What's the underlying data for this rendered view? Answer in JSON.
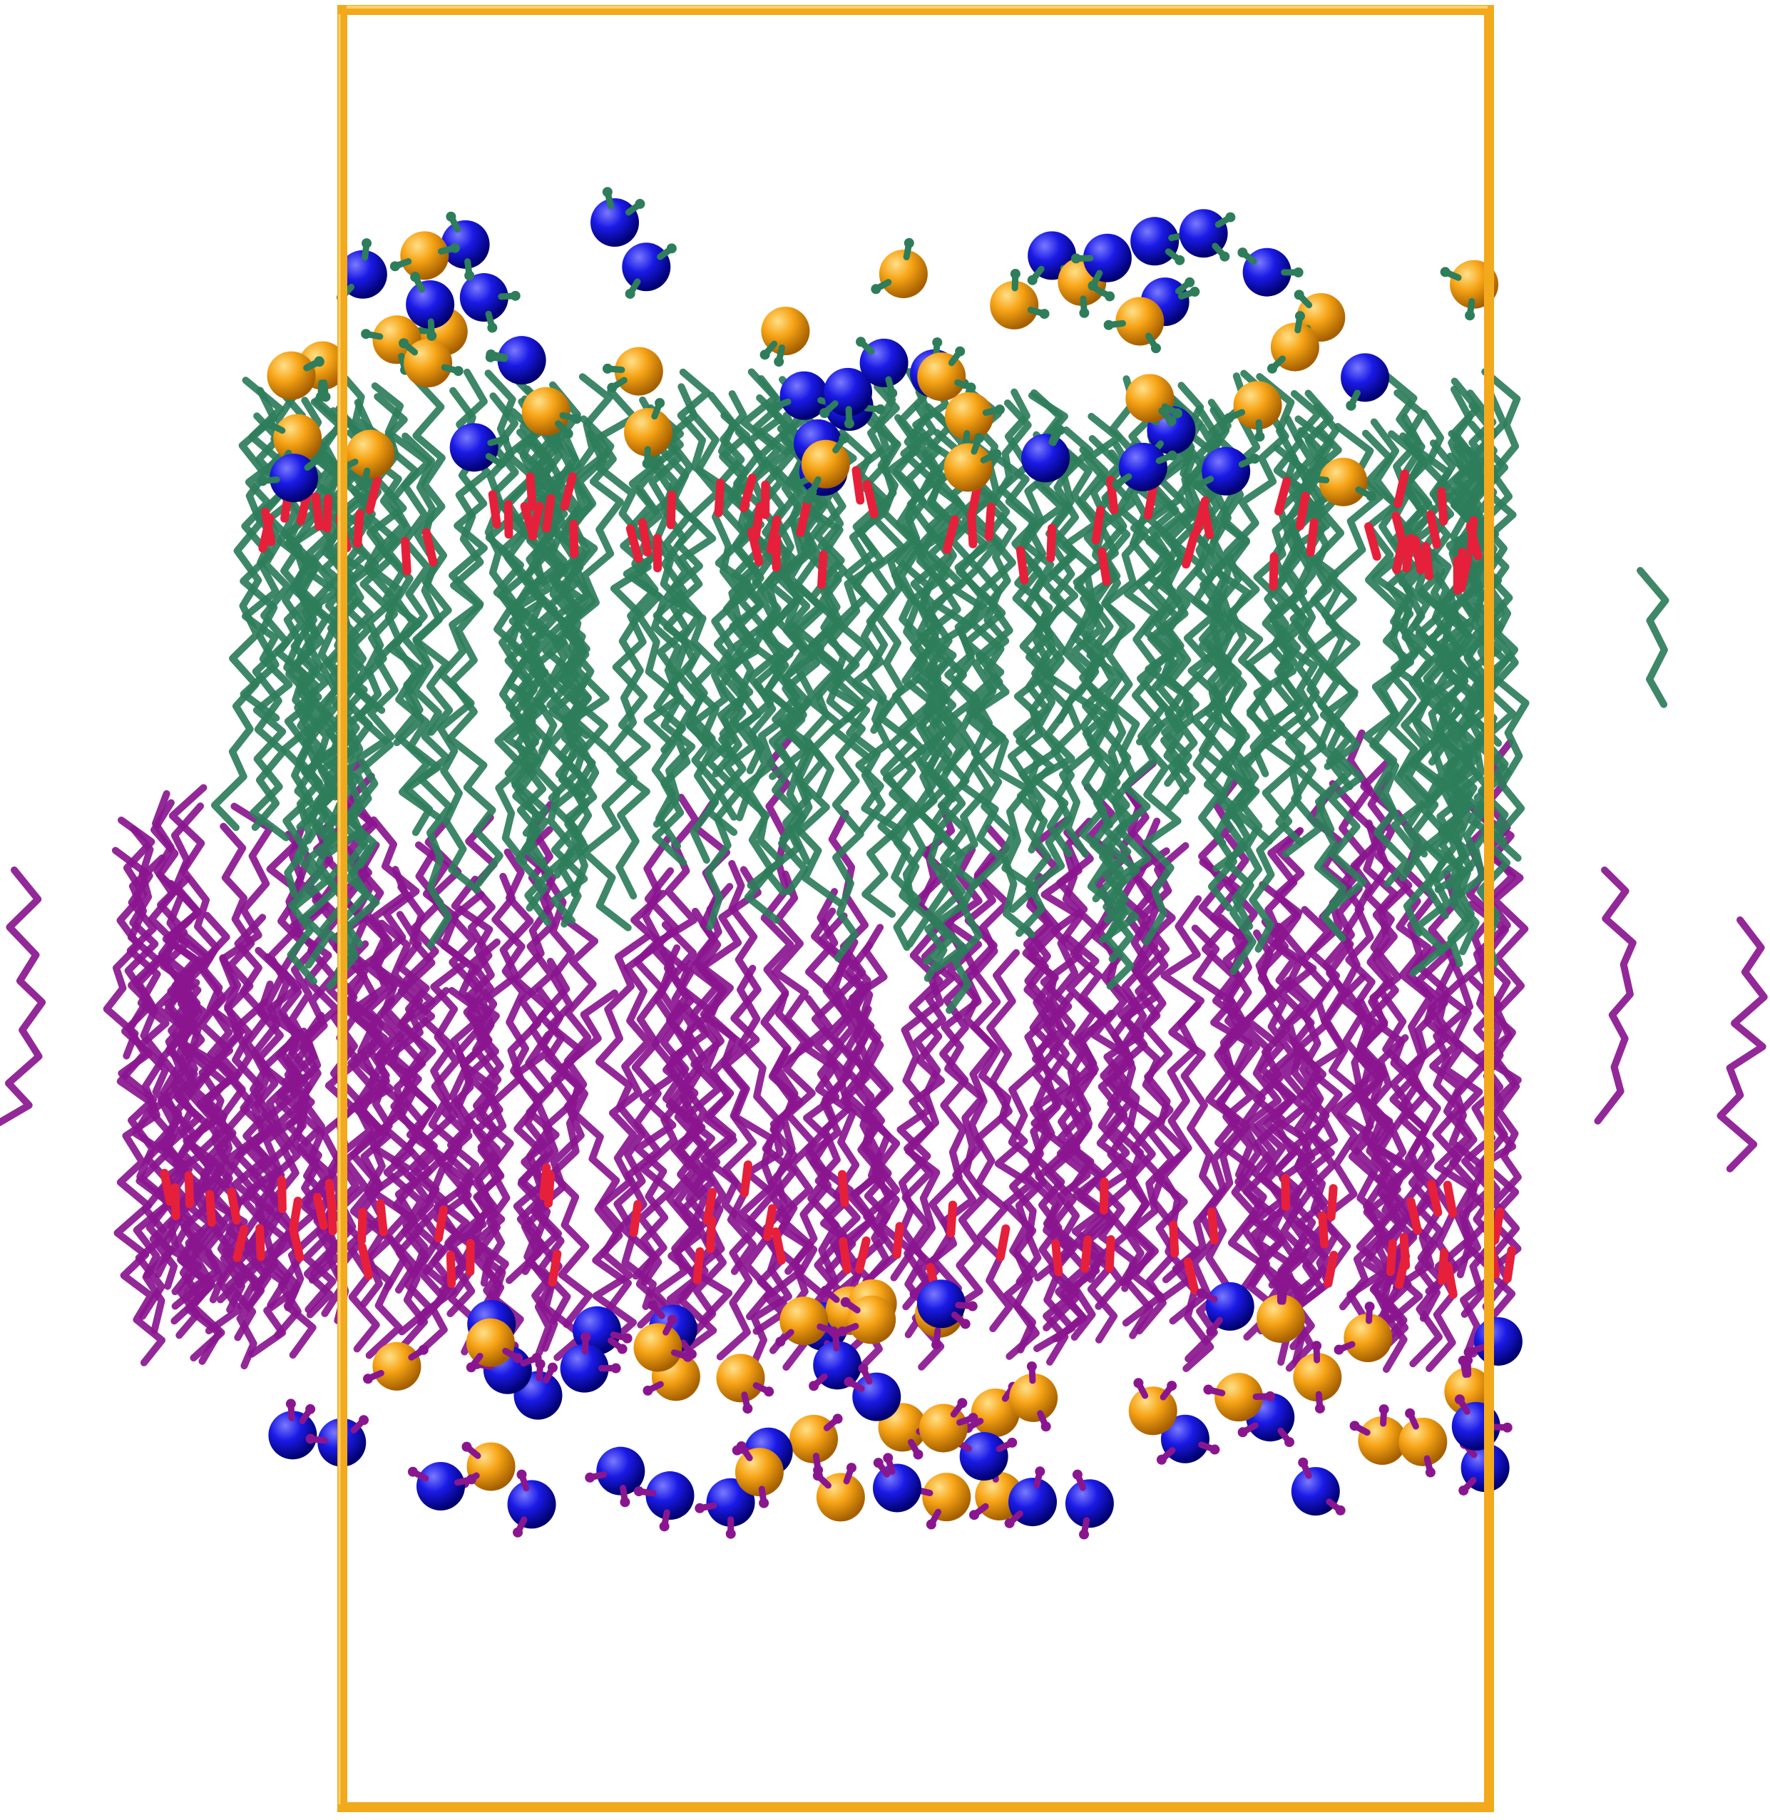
{
  "scene": {
    "subject": "lipid-bilayer-molecular-render",
    "colors": {
      "background": "#ffffff",
      "box": "#f2a91c",
      "box_shadow": "#b5780a",
      "upper_leaflet": "#2e7d5b",
      "lower_leaflet": "#8a168f",
      "ester_oxygen": "#e6203a",
      "nitrogen_bead": "#1414e0",
      "phosphate_bead": "#f5a010"
    },
    "leaflets": [
      {
        "name": "upper",
        "color_key": "upper_leaflet",
        "lipid_count": 26
      },
      {
        "name": "lower",
        "color_key": "lower_leaflet",
        "lipid_count": 26
      }
    ],
    "bead_types": [
      "nitrogen-bead",
      "phosphate-bead"
    ],
    "icons": [
      "periodic-box-icon"
    ]
  }
}
